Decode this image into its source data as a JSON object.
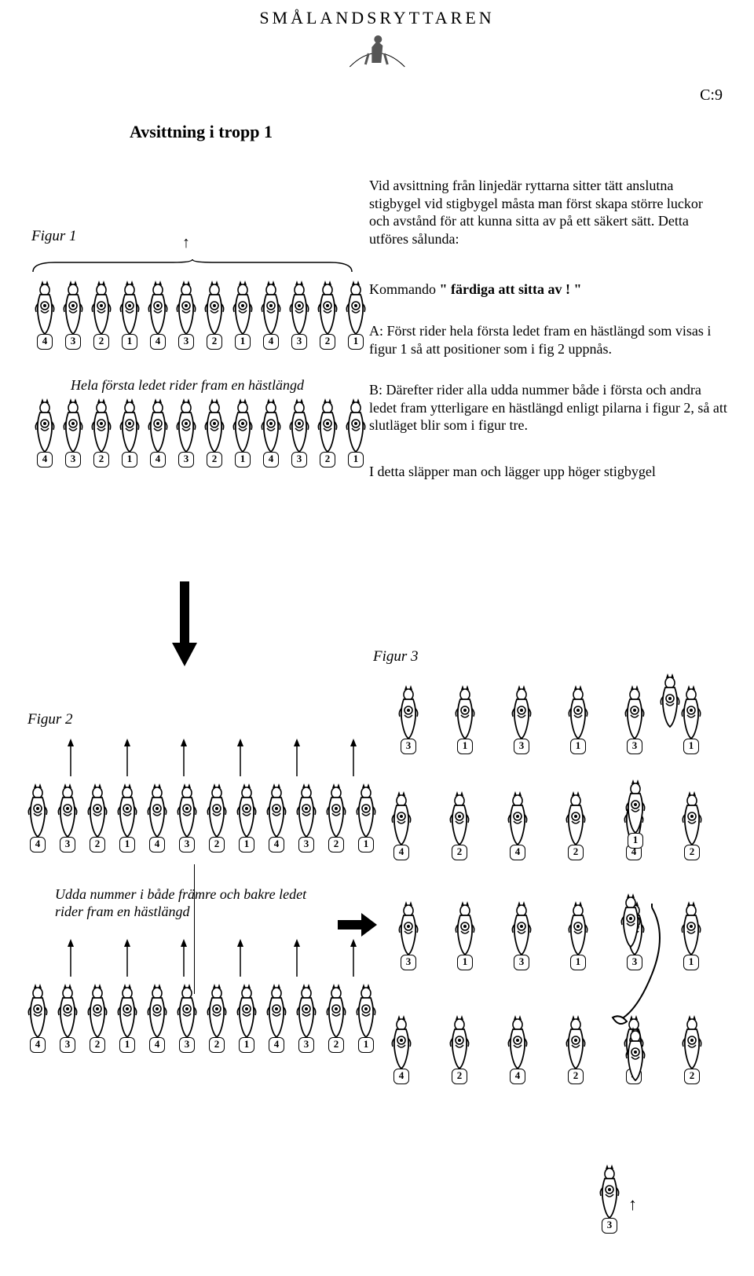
{
  "logo_text": "SMÅLANDSRYTTAREN",
  "page_number": "C:9",
  "title": "Avsittning i tropp 1",
  "fig1_label": "Figur 1",
  "fig1_caption": "Hela första ledet rider fram en hästlängd",
  "fig2_label": "Figur 2",
  "fig2_caption": "Udda nummer i både främre och bakre ledet rider fram en hästlängd",
  "fig3_label": "Figur 3",
  "intro": "Vid avsittning från linjedär ryttarna sitter tätt anslutna stigbygel vid stigbygel måsta man först skapa större luckor och avstånd för att kunna sitta av på ett säkert sätt. Detta utföres sålunda:",
  "kommando_prefix": "Kommando ",
  "kommando_bold": "\" färdiga att sitta av ! \"",
  "stepA": "A: Först rider hela första ledet fram en hästlängd som visas i figur 1 så att positioner som i fig 2 uppnås.",
  "stepB": "B: Därefter rider alla udda nummer både i första och andra ledet fram ytterligare en hästlängd enligt pilarna i figur 2,  så att slutläget blir som i figur tre.",
  "stepC": "I detta släpper  man och lägger upp höger stigbygel",
  "row12": [
    "4",
    "3",
    "2",
    "1",
    "4",
    "3",
    "2",
    "1",
    "4",
    "3",
    "2",
    "1"
  ],
  "fig3_row_odd": [
    "3",
    "1",
    "3",
    "1",
    "3",
    "1"
  ],
  "fig3_row_even": [
    "4",
    "2",
    "4",
    "2",
    "4",
    "2"
  ],
  "fig3_bottom_solo": "3",
  "colors": {
    "ink": "#000000",
    "bg": "#ffffff"
  },
  "fonts": {
    "body_pt": 18,
    "title_pt": 22
  }
}
